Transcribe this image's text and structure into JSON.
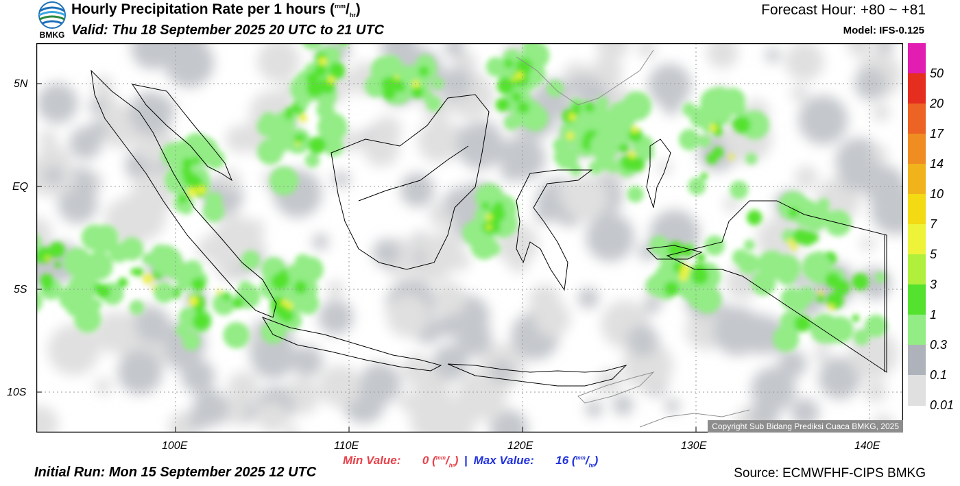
{
  "header": {
    "title": "Hourly Precipitation Rate per 1 hours",
    "unit_num": "mm",
    "unit_den": "hr",
    "valid": "Valid: Thu 18 September 2025 20 UTC to 21 UTC",
    "forecast_hour": "Forecast Hour: +80 ~ +81",
    "model": "Model: IFS-0.125",
    "logo_text": "BMKG"
  },
  "map": {
    "lat_labels": [
      "5N",
      "EQ",
      "5S",
      "10S"
    ],
    "lon_labels": [
      "100E",
      "110E",
      "120E",
      "130E",
      "140E"
    ],
    "copyright": "Copyright Sub Bidang Prediksi Cuaca BMKG, 2025",
    "colors": {
      "land_border": "#000000",
      "coast_light": "#909090",
      "gridline": "#9a9a9a"
    }
  },
  "colorbar": {
    "labels": [
      "50",
      "20",
      "17",
      "14",
      "10",
      "7",
      "5",
      "3",
      "1",
      "0.3",
      "0.1",
      "0.01"
    ],
    "colors": [
      "#e21db2",
      "#e52e1f",
      "#ec6323",
      "#ef8c22",
      "#f1b31c",
      "#f3da13",
      "#eef33a",
      "#b1ef3d",
      "#54e22f",
      "#93ec85",
      "#aeb2ba",
      "#e0e0e0"
    ]
  },
  "stats": {
    "min_label": "Min Value:",
    "min_value": "0",
    "max_label": "Max Value:",
    "max_value": "16",
    "separator": "|",
    "min_color": "#e8414a",
    "max_color": "#2233dd"
  },
  "footer": {
    "initial_run": "Initial Run: Mon 15 September 2025 12 UTC",
    "source": "Source: ECMWFHF-CIPS BMKG"
  }
}
